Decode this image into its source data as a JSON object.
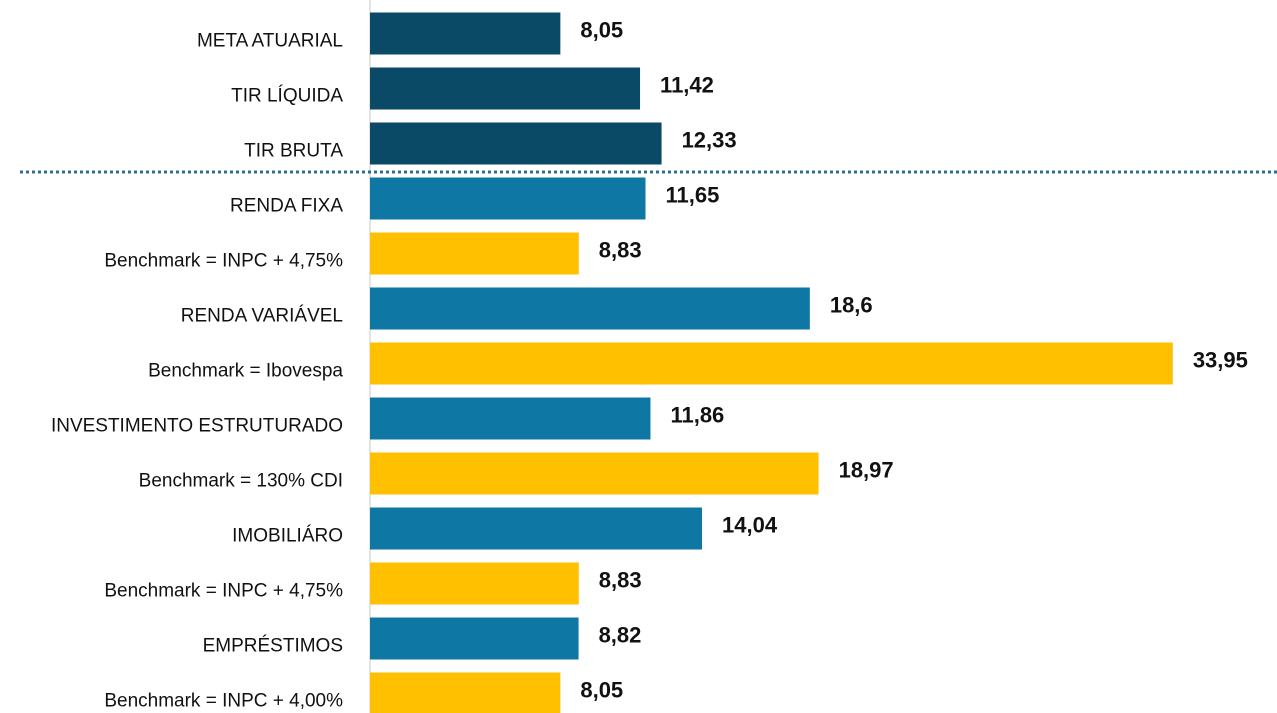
{
  "chart_data": {
    "type": "barh",
    "categories": [
      "META ATUARIAL",
      "TIR LÍQUIDA",
      "TIR BRUTA",
      "RENDA FIXA",
      "Benchmark = INPC + 4,75%",
      "RENDA VARIÁVEL",
      "Benchmark = Ibovespa",
      "INVESTIMENTO ESTRUTURADO",
      "Benchmark = 130% CDI",
      "IMOBILIÁRO",
      "Benchmark = INPC + 4,75%",
      "EMPRÉSTIMOS",
      "Benchmark = INPC + 4,00%"
    ],
    "values": [
      8.05,
      11.42,
      12.33,
      11.65,
      8.83,
      18.6,
      33.95,
      11.86,
      18.97,
      14.04,
      8.83,
      8.82,
      8.05
    ],
    "value_labels": [
      "8,05",
      "11,42",
      "12,33",
      "11,65",
      "8,83",
      "18,6",
      "33,95",
      "11,86",
      "18,97",
      "14,04",
      "8,83",
      "8,82",
      "8,05"
    ],
    "colors": [
      "#0b4a66",
      "#0b4a66",
      "#0b4a66",
      "#0f77a3",
      "#ffc000",
      "#0f77a3",
      "#ffc000",
      "#0f77a3",
      "#ffc000",
      "#0f77a3",
      "#ffc000",
      "#0f77a3",
      "#ffc000"
    ],
    "xlim": [
      0,
      34
    ]
  }
}
